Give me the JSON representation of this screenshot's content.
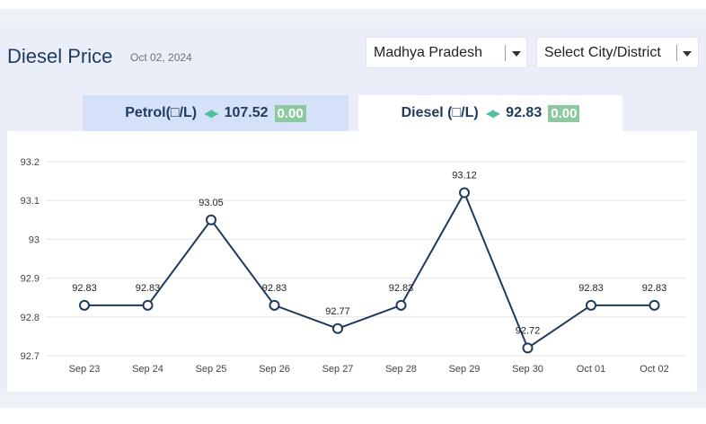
{
  "header": {
    "title": "Diesel Price",
    "date": "Oct 02, 2024"
  },
  "filters": {
    "state": "Madhya Pradesh",
    "city": "Select City/District"
  },
  "tabs": [
    {
      "label": "Petrol(□/L)",
      "price": "107.52",
      "change": "0.00",
      "selected": false
    },
    {
      "label": "Diesel (□/L)",
      "price": "92.83",
      "change": "0.00",
      "selected": true
    }
  ],
  "colors": {
    "line": "#1f3a5c",
    "change_badge": "#8cc9a1",
    "arrows": "#4ec0a0"
  },
  "chart_data": {
    "type": "line",
    "x": [
      "Sep 23",
      "Sep 24",
      "Sep 25",
      "Sep 26",
      "Sep 27",
      "Sep 28",
      "Sep 29",
      "Sep 30",
      "Oct 01",
      "Oct 02"
    ],
    "series": [
      {
        "values": [
          92.83,
          92.83,
          93.05,
          92.83,
          92.77,
          92.83,
          93.12,
          92.72,
          92.83,
          92.83
        ]
      }
    ],
    "data_labels": [
      "92.83",
      "92.83",
      "93.05",
      "92.83",
      "92.77",
      "92.83",
      "93.12",
      "92.72",
      "92.83",
      "92.83"
    ],
    "y_ticks": [
      92.7,
      92.8,
      92.9,
      93,
      93.1,
      93.2
    ],
    "y_tick_labels": [
      "92.7",
      "92.8",
      "92.9",
      "93",
      "93.1",
      "93.2"
    ],
    "ylim": [
      92.7,
      93.2
    ],
    "grid": true,
    "title": "",
    "xlabel": "",
    "ylabel": ""
  }
}
